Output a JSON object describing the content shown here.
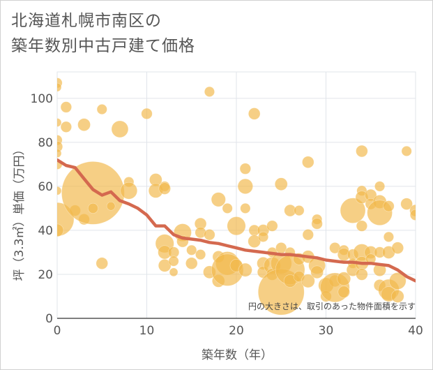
{
  "chart_data": {
    "type": "scatter",
    "title": "北海道札幌市南区の\n築年数別中古戸建て価格",
    "xlabel": "築年数（年）",
    "ylabel": "坪（3.3㎡）単価（万円）",
    "xlim": [
      0,
      40
    ],
    "ylim": [
      0,
      112
    ],
    "xticks": [
      0,
      10,
      20,
      30,
      40
    ],
    "yticks": [
      0,
      20,
      40,
      60,
      80,
      100
    ],
    "grid": true,
    "note": "円の大きさは、取引のあった物件面積を示す",
    "colors": {
      "bubble": "#f2b84b",
      "trend": "#d4694f",
      "grid": "#e0e4ea",
      "text": "#555555"
    },
    "series": [
      {
        "kind": "bubble",
        "points": [
          [
            0,
            107,
            1.2
          ],
          [
            0,
            105,
            1
          ],
          [
            0,
            89,
            1
          ],
          [
            0,
            81,
            1.2
          ],
          [
            0,
            78,
            1.3
          ],
          [
            0,
            75,
            1
          ],
          [
            0,
            70,
            1.2
          ],
          [
            0,
            58,
            1
          ],
          [
            0,
            45,
            4
          ],
          [
            0,
            40,
            1.5
          ],
          [
            1,
            96,
            1.3
          ],
          [
            1,
            87,
            1.3
          ],
          [
            2,
            49,
            1.3
          ],
          [
            3,
            88,
            1.5
          ],
          [
            3,
            45,
            1.3
          ],
          [
            4,
            57,
            7.5
          ],
          [
            4,
            50,
            1.2
          ],
          [
            5,
            95,
            1.2
          ],
          [
            5,
            25,
            1.4
          ],
          [
            6,
            51,
            1
          ],
          [
            7,
            86,
            2
          ],
          [
            8,
            62,
            1.2
          ],
          [
            8,
            58,
            2
          ],
          [
            10,
            93,
            1.3
          ],
          [
            11,
            63,
            1.5
          ],
          [
            11,
            58,
            1.7
          ],
          [
            12,
            60,
            1.2
          ],
          [
            12,
            59,
            1.4
          ],
          [
            12,
            34,
            2.2
          ],
          [
            12,
            30,
            1.6
          ],
          [
            12,
            24,
            1.5
          ],
          [
            13,
            30,
            1.3
          ],
          [
            13,
            26,
            1.2
          ],
          [
            13,
            21,
            1
          ],
          [
            14,
            39,
            2.1
          ],
          [
            14,
            35,
            1.4
          ],
          [
            15,
            31,
            1.2
          ],
          [
            15,
            25,
            1.4
          ],
          [
            16,
            43,
            1.4
          ],
          [
            16,
            39,
            1.3
          ],
          [
            16,
            29,
            1.2
          ],
          [
            17,
            103,
            1.2
          ],
          [
            17,
            38,
            1.3
          ],
          [
            17,
            21,
            1.5
          ],
          [
            18,
            54,
            1.7
          ],
          [
            18,
            28,
            1.4
          ],
          [
            18,
            17,
            1.5
          ],
          [
            19,
            50,
            1.2
          ],
          [
            19,
            25,
            2.8
          ],
          [
            19,
            22,
            3.8
          ],
          [
            20,
            42,
            2.2
          ],
          [
            20,
            24,
            1.5
          ],
          [
            21,
            68,
            1.3
          ],
          [
            21,
            60,
            1.8
          ],
          [
            21,
            50,
            1.2
          ],
          [
            21,
            22,
            1.6
          ],
          [
            22,
            93,
            1.4
          ],
          [
            22,
            40,
            1.3
          ],
          [
            22,
            35,
            1.5
          ],
          [
            23,
            40,
            1.4
          ],
          [
            23,
            37,
            1.2
          ],
          [
            23,
            25,
            1.5
          ],
          [
            23,
            21,
            1.4
          ],
          [
            24,
            42,
            1.3
          ],
          [
            24,
            30,
            1.2
          ],
          [
            24,
            24,
            2
          ],
          [
            24,
            20,
            1.4
          ],
          [
            25,
            61,
            1.5
          ],
          [
            25,
            32,
            1.3
          ],
          [
            25,
            25,
            2.5
          ],
          [
            25,
            12,
            5.5
          ],
          [
            26,
            49,
            1.4
          ],
          [
            26,
            30,
            1.2
          ],
          [
            26,
            22,
            3.5
          ],
          [
            26,
            17,
            1.5
          ],
          [
            27,
            49,
            1.2
          ],
          [
            27,
            27,
            1.4
          ],
          [
            27,
            19,
            1.3
          ],
          [
            28,
            71,
            1.4
          ],
          [
            28,
            38,
            1.3
          ],
          [
            28,
            28,
            1.5
          ],
          [
            28,
            17,
            1.6
          ],
          [
            29,
            45,
            1.2
          ],
          [
            29,
            43,
            1.3
          ],
          [
            29,
            24,
            2
          ],
          [
            29,
            21,
            1.5
          ],
          [
            30,
            15,
            1.8
          ],
          [
            30,
            10,
            1.3
          ],
          [
            31,
            32,
            1.3
          ],
          [
            31,
            17,
            1.4
          ],
          [
            31,
            14,
            3.5
          ],
          [
            32,
            31,
            1.2
          ],
          [
            32,
            29,
            1.5
          ],
          [
            32,
            18,
            1.6
          ],
          [
            32,
            12,
            1.4
          ],
          [
            33,
            49,
            3
          ],
          [
            33,
            29,
            1.3
          ],
          [
            33,
            25,
            1.2
          ],
          [
            33,
            22,
            1.5
          ],
          [
            34,
            76,
            1.4
          ],
          [
            34,
            58,
            1.2
          ],
          [
            34,
            55,
            1.5
          ],
          [
            34,
            42,
            1.3
          ],
          [
            34,
            30,
            2
          ],
          [
            34,
            25,
            1.6
          ],
          [
            34,
            20,
            1.4
          ],
          [
            35,
            56,
            1.4
          ],
          [
            35,
            52,
            1.3
          ],
          [
            35,
            30,
            1.5
          ],
          [
            35,
            27,
            1.2
          ],
          [
            36,
            60,
            1.2
          ],
          [
            36,
            53,
            1.6
          ],
          [
            36,
            48,
            3
          ],
          [
            36,
            30,
            1.3
          ],
          [
            36,
            22,
            1.5
          ],
          [
            36,
            15,
            1.4
          ],
          [
            37,
            51,
            1.3
          ],
          [
            37,
            37,
            1.2
          ],
          [
            37,
            30,
            1.5
          ],
          [
            37,
            13,
            2.5
          ],
          [
            37,
            11,
            1.8
          ],
          [
            38,
            32,
            1.4
          ],
          [
            38,
            17,
            2
          ],
          [
            38,
            10,
            1.5
          ],
          [
            39,
            76,
            1.2
          ],
          [
            39,
            52,
            1.4
          ],
          [
            40,
            49,
            1.4
          ],
          [
            40,
            47,
            1.3
          ]
        ]
      },
      {
        "kind": "trend",
        "points": [
          [
            0,
            72
          ],
          [
            1,
            69.5
          ],
          [
            2,
            68.5
          ],
          [
            3,
            63.5
          ],
          [
            4,
            58.5
          ],
          [
            5,
            56
          ],
          [
            6,
            57.5
          ],
          [
            7,
            53.5
          ],
          [
            8,
            52
          ],
          [
            9,
            50
          ],
          [
            10,
            47
          ],
          [
            11,
            42
          ],
          [
            12,
            42
          ],
          [
            13,
            38
          ],
          [
            14,
            36.5
          ],
          [
            15,
            36
          ],
          [
            16,
            35.5
          ],
          [
            17,
            34.5
          ],
          [
            18,
            34
          ],
          [
            19,
            33
          ],
          [
            20,
            32
          ],
          [
            21,
            31
          ],
          [
            22,
            30.5
          ],
          [
            23,
            30
          ],
          [
            24,
            29.5
          ],
          [
            25,
            29
          ],
          [
            26,
            29
          ],
          [
            27,
            28.5
          ],
          [
            28,
            28
          ],
          [
            29,
            27.5
          ],
          [
            30,
            26.5
          ],
          [
            31,
            26
          ],
          [
            32,
            25.5
          ],
          [
            33,
            25.5
          ],
          [
            34,
            25
          ],
          [
            35,
            25
          ],
          [
            36,
            24.5
          ],
          [
            37,
            24
          ],
          [
            38,
            22
          ],
          [
            39,
            19
          ],
          [
            40,
            17
          ]
        ]
      }
    ]
  }
}
